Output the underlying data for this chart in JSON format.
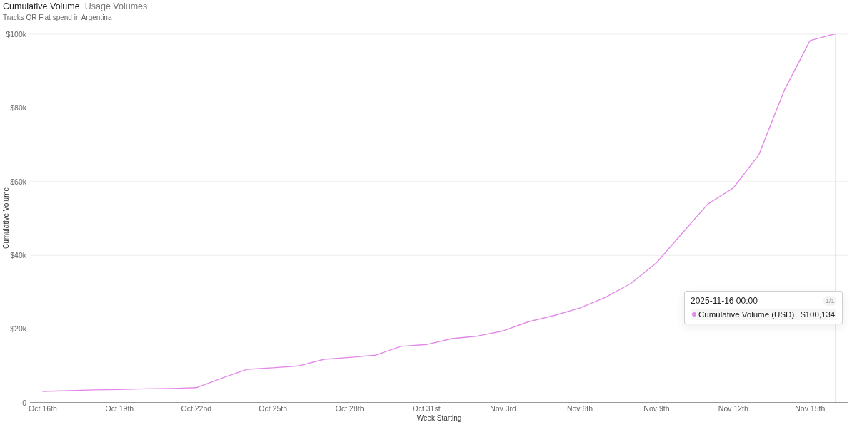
{
  "chart_data": {
    "type": "line",
    "title": "Cumulative Volume",
    "subtitle": "Tracks QR Fiat spend in Argentina",
    "xlabel": "Week Starting",
    "ylabel": "Cumulative Volume",
    "annotations": [
      "Usage Volumes",
      "2025-11-16 00:00",
      "1/1",
      "$100,134"
    ],
    "x": [
      "2025-10-16",
      "2025-10-17",
      "2025-10-18",
      "2025-10-19",
      "2025-10-20",
      "2025-10-21",
      "2025-10-22",
      "2025-10-23",
      "2025-10-24",
      "2025-10-25",
      "2025-10-26",
      "2025-10-27",
      "2025-10-28",
      "2025-10-29",
      "2025-10-30",
      "2025-10-31",
      "2025-11-01",
      "2025-11-02",
      "2025-11-03",
      "2025-11-04",
      "2025-11-05",
      "2025-11-06",
      "2025-11-07",
      "2025-11-08",
      "2025-11-09",
      "2025-11-10",
      "2025-11-11",
      "2025-11-12",
      "2025-11-13",
      "2025-11-14",
      "2025-11-15",
      "2025-11-16"
    ],
    "series": [
      {
        "name": "Cumulative Volume (USD)",
        "color": "#e388e8",
        "values": [
          3100,
          3300,
          3500,
          3600,
          3800,
          3900,
          4100,
          6700,
          9100,
          9500,
          10000,
          11800,
          12300,
          12900,
          15300,
          15800,
          17400,
          18100,
          19500,
          22000,
          23700,
          25700,
          28600,
          32400,
          38000,
          46000,
          53900,
          58300,
          67300,
          84900,
          98300,
          100134
        ]
      }
    ],
    "xlim": [
      "2025-10-15T12:00",
      "2025-11-16T12:00"
    ],
    "xticks": [
      {
        "value": "2025-10-16",
        "label": "Oct 16th"
      },
      {
        "value": "2025-10-19",
        "label": "Oct 19th"
      },
      {
        "value": "2025-10-22",
        "label": "Oct 22nd"
      },
      {
        "value": "2025-10-25",
        "label": "Oct 25th"
      },
      {
        "value": "2025-10-28",
        "label": "Oct 28th"
      },
      {
        "value": "2025-10-31",
        "label": "Oct 31st"
      },
      {
        "value": "2025-11-03",
        "label": "Nov 3rd"
      },
      {
        "value": "2025-11-06",
        "label": "Nov 6th"
      },
      {
        "value": "2025-11-09",
        "label": "Nov 9th"
      },
      {
        "value": "2025-11-12",
        "label": "Nov 12th"
      },
      {
        "value": "2025-11-15",
        "label": "Nov 15th"
      }
    ],
    "ylim": [
      0,
      100200
    ],
    "yticks": [
      0,
      {
        "value": 20000,
        "label": "$20k"
      },
      {
        "value": 40000,
        "label": "$40k"
      },
      {
        "value": 60000,
        "label": "$60k"
      },
      {
        "value": 80000,
        "label": "$80k"
      },
      {
        "value": 100000,
        "label": "$100k"
      }
    ],
    "grid": "y",
    "legend": "right",
    "marker": "none",
    "line_style": "solid",
    "ref_lines": [
      {
        "axis": "x",
        "value": "2025-11-16",
        "color": "#dcdcdc"
      }
    ]
  }
}
